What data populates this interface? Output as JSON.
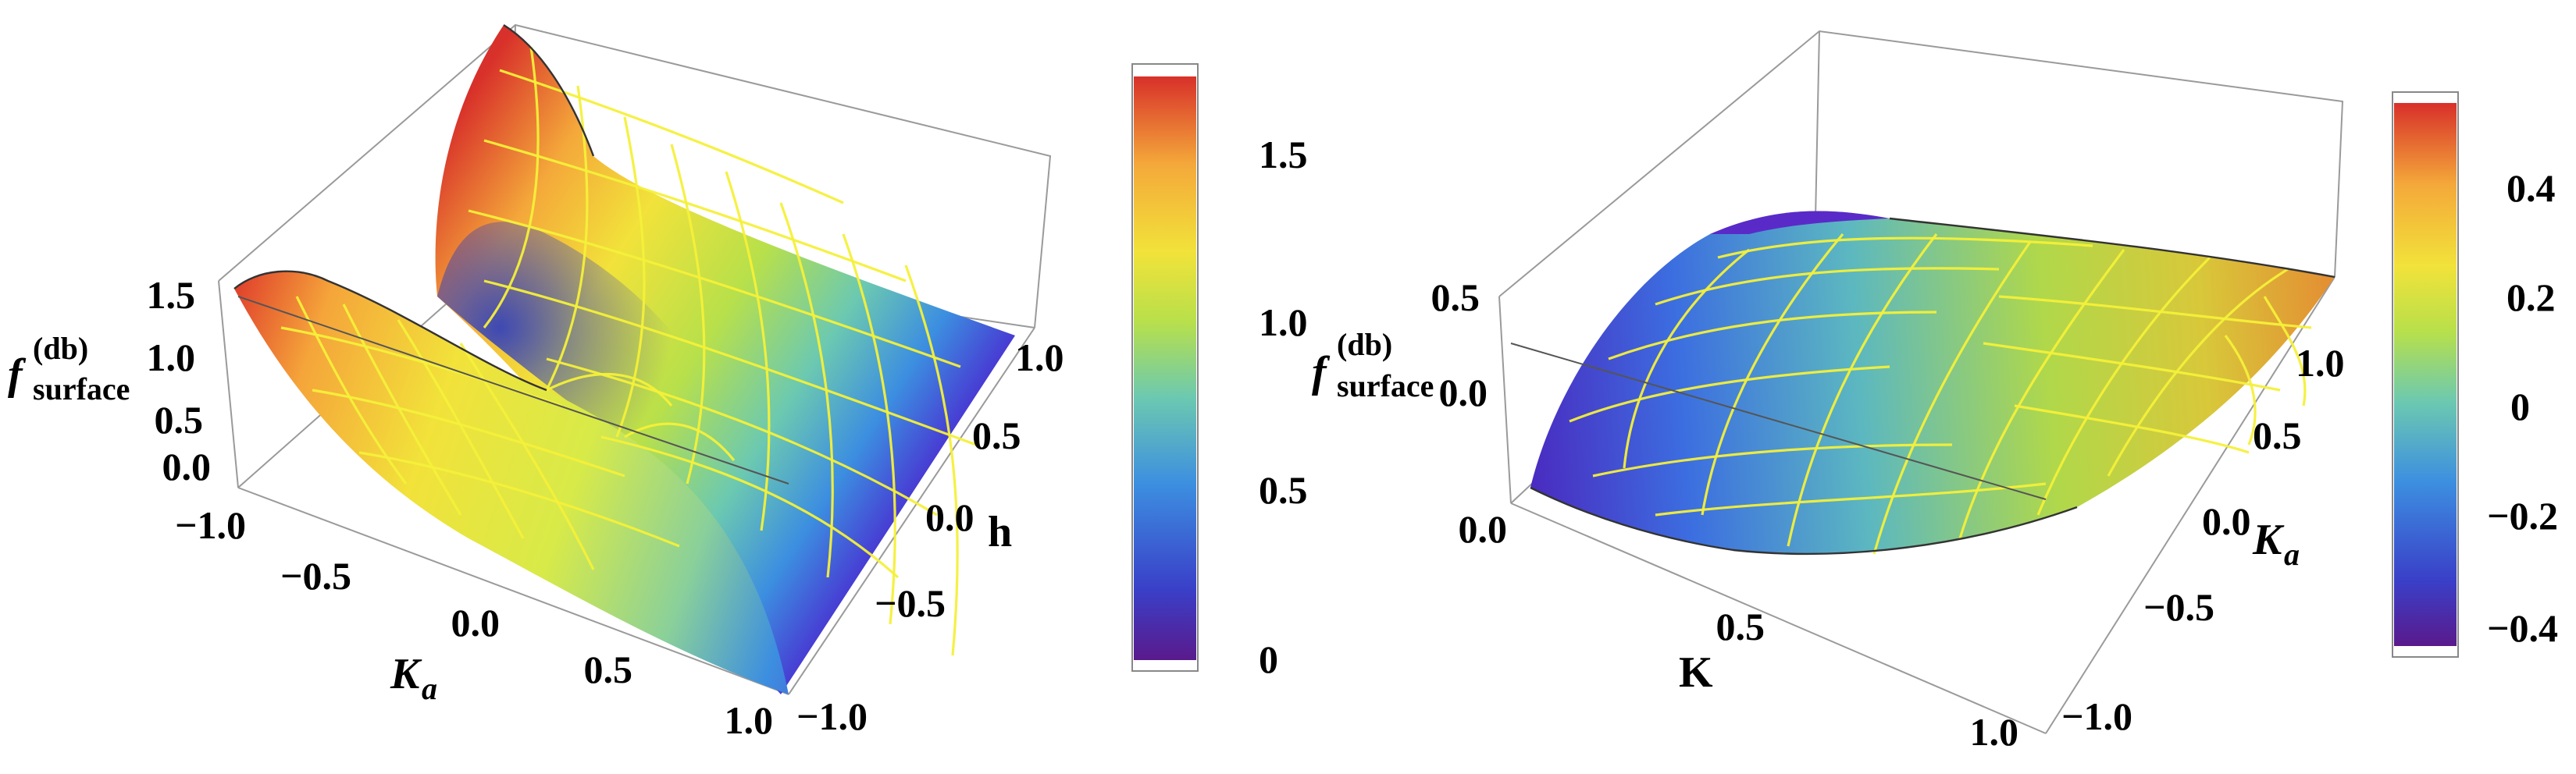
{
  "chart_data": [
    {
      "type": "surface3d",
      "zlabel_main": "f",
      "zlabel_sub": "surface",
      "zlabel_sup": "(db)",
      "xlabel_main": "K",
      "xlabel_sub": "a",
      "ylabel": "h",
      "x_ticks": [
        "−1.0",
        "−0.5",
        "0.0",
        "0.5",
        "1.0"
      ],
      "y_ticks": [
        "−1.0",
        "−0.5",
        "0.0",
        "0.5",
        "1.0"
      ],
      "z_ticks": [
        "0.0",
        "0.5",
        "1.0",
        "1.5"
      ],
      "xlim": [
        -1,
        1
      ],
      "ylim": [
        -1,
        1
      ],
      "zlim": [
        0,
        1.7
      ],
      "colorbar_ticks": [
        "0",
        "0.5",
        "1.0",
        "1.5"
      ],
      "colorbar_range": [
        0,
        1.75
      ],
      "colormap": [
        "#5a1a8c",
        "#3a3fc8",
        "#3c8ee0",
        "#6cc9b0",
        "#b8e04a",
        "#f2e23a",
        "#f4a83a",
        "#d8302a"
      ]
    },
    {
      "type": "surface3d",
      "zlabel_main": "f",
      "zlabel_sub": "surface",
      "zlabel_sup": "(db)",
      "xlabel": "K",
      "ylabel_main": "K",
      "ylabel_sub": "a",
      "x_ticks": [
        "0.0",
        "0.5",
        "1.0"
      ],
      "y_ticks": [
        "−1.0",
        "−0.5",
        "0.0",
        "0.5",
        "1.0"
      ],
      "z_ticks": [
        "0.0",
        "0.5"
      ],
      "xlim": [
        0,
        1
      ],
      "ylim": [
        -1,
        1
      ],
      "zlim": [
        -0.45,
        0.55
      ],
      "colorbar_ticks": [
        "−0.4",
        "−0.2",
        "0",
        "0.2",
        "0.4"
      ],
      "colorbar_range": [
        -0.45,
        0.55
      ],
      "colormap": [
        "#5a1a8c",
        "#3a3fc8",
        "#3c8ee0",
        "#6cc9b0",
        "#b8e04a",
        "#f2e23a",
        "#f4a83a",
        "#d8302a"
      ]
    }
  ]
}
